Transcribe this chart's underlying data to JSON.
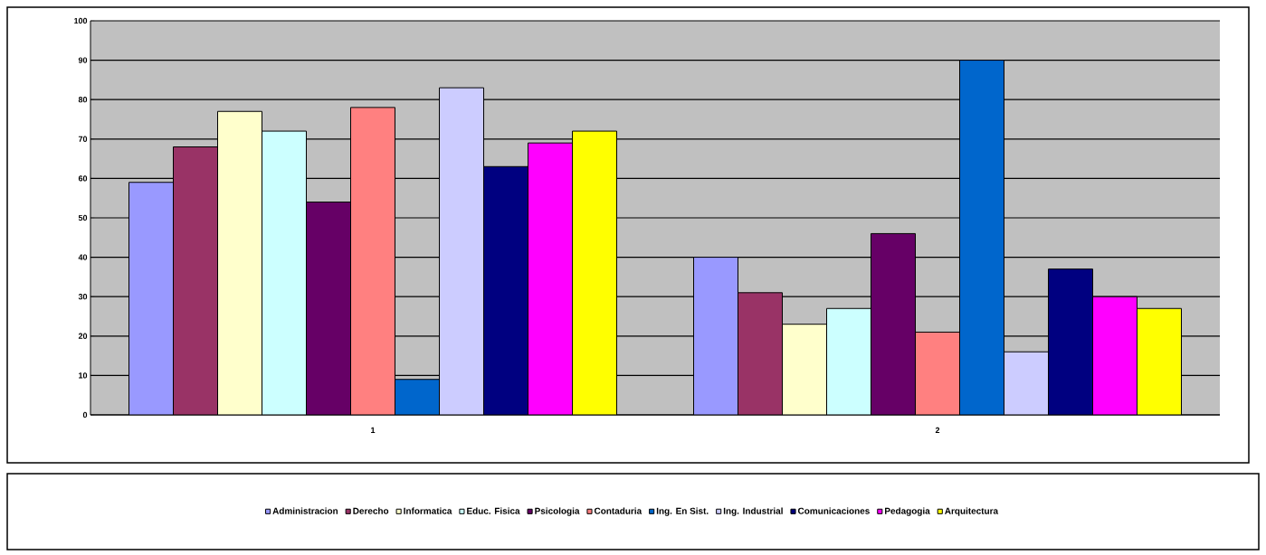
{
  "chart_data": {
    "type": "bar",
    "categories": [
      "1",
      "2"
    ],
    "series": [
      {
        "name": "Administracion",
        "color": "#9999ff",
        "values": [
          59,
          40
        ]
      },
      {
        "name": "Derecho",
        "color": "#993366",
        "values": [
          68,
          31
        ]
      },
      {
        "name": "Informatica",
        "color": "#ffffcc",
        "values": [
          77,
          23
        ]
      },
      {
        "name": "Educ. Fisica",
        "color": "#ccffff",
        "values": [
          72,
          27
        ]
      },
      {
        "name": "Psicologia",
        "color": "#660066",
        "values": [
          54,
          46
        ]
      },
      {
        "name": "Contaduria",
        "color": "#ff8080",
        "values": [
          78,
          21
        ]
      },
      {
        "name": "Ing. En Sist.",
        "color": "#0066cc",
        "values": [
          9,
          90
        ]
      },
      {
        "name": "Ing. Industrial",
        "color": "#ccccff",
        "values": [
          83,
          16
        ]
      },
      {
        "name": "Comunicaciones",
        "color": "#000080",
        "values": [
          63,
          37
        ]
      },
      {
        "name": "Pedagogia",
        "color": "#ff00ff",
        "values": [
          69,
          30
        ]
      },
      {
        "name": "Arquitectura",
        "color": "#ffff00",
        "values": [
          72,
          27
        ]
      }
    ],
    "ylim": [
      0,
      100
    ],
    "yticks": [
      0,
      10,
      20,
      30,
      40,
      50,
      60,
      70,
      80,
      90,
      100
    ],
    "grid": "y",
    "legend": "bottom"
  }
}
